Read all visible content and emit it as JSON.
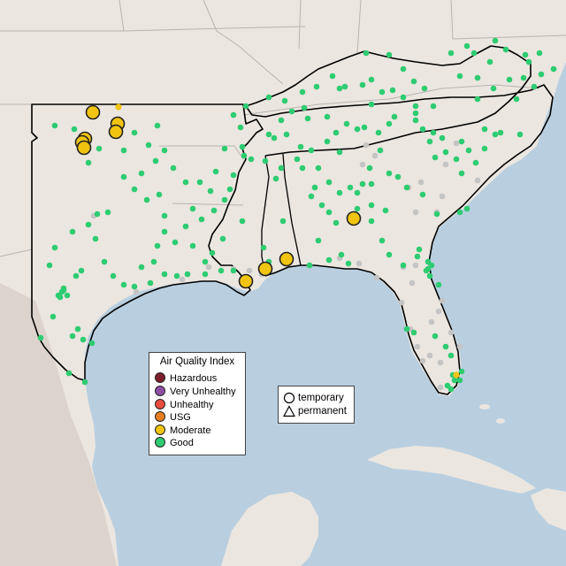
{
  "map": {
    "colors": {
      "water": "#b9cfe0",
      "land": "#ebe6e0",
      "terrain": "#dcd4cc",
      "border": "#b9b4b0",
      "region_outline": "#000000"
    },
    "aqi_legend": {
      "title": "Air Quality Index",
      "items": [
        {
          "label": "Hazardous",
          "color": "#7e1e2b"
        },
        {
          "label": "Very Unhealthy",
          "color": "#8f4fa6"
        },
        {
          "label": "Unhealthy",
          "color": "#e74c3c"
        },
        {
          "label": "USG",
          "color": "#e67e22"
        },
        {
          "label": "Moderate",
          "color": "#f1c40f"
        },
        {
          "label": "Good",
          "color": "#2ecc71"
        }
      ]
    },
    "type_legend": {
      "items": [
        {
          "label": "temporary",
          "symbol": "circle-icon"
        },
        {
          "label": "permanent",
          "symbol": "triangle-icon"
        }
      ]
    },
    "inactive_color": "#c4c4c4"
  }
}
